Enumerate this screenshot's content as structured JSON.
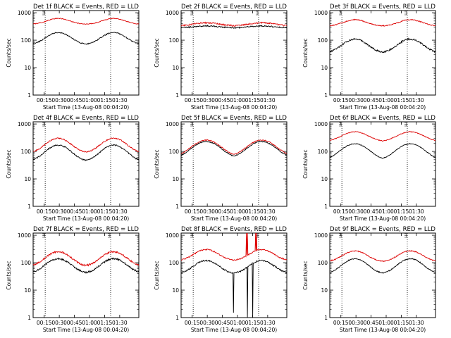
{
  "figure": {
    "background": "#ffffff",
    "colors": {
      "events": "#000000",
      "lld": "#dd0000",
      "axes": "#000000"
    }
  },
  "chart_data": [
    {
      "type": "line",
      "title": "Det 1f BLACK = Events, RED = LLD",
      "xlabel": "Start Time (13-Aug-08 00:04:20)",
      "ylabel": "Counts/sec",
      "yscale": "log",
      "ylim": [
        1,
        1200
      ],
      "xlim": [
        0,
        105
      ],
      "x_ticks": [
        11,
        26,
        41,
        56,
        71,
        86
      ],
      "x_tick_labels": [
        "00:15",
        "00:30",
        "00:45",
        "01:00",
        "01:15",
        "01:30"
      ],
      "y_ticks": [
        1,
        10,
        100,
        1000
      ],
      "y_tick_labels": [
        "1",
        "10",
        "100",
        "1000"
      ],
      "marker_lines": [
        12,
        77
      ],
      "series": [
        {
          "name": "Events",
          "color": "#000000",
          "shape": {
            "base": 70,
            "peak": 190,
            "peaks": [
              25,
              80
            ],
            "width": 10,
            "noise": 0.04
          }
        },
        {
          "name": "LLD",
          "color": "#dd0000",
          "shape": {
            "base": 380,
            "peak": 620,
            "peaks": [
              25,
              80
            ],
            "width": 10,
            "noise": 0.03
          }
        }
      ]
    },
    {
      "type": "line",
      "title": "Det 2f BLACK = Events, RED = LLD",
      "xlabel": "Start Time (13-Aug-08 00:04:20)",
      "ylabel": "Counts/sec",
      "yscale": "log",
      "ylim": [
        1,
        1200
      ],
      "xlim": [
        0,
        105
      ],
      "x_ticks": [
        11,
        26,
        41,
        56,
        71,
        86
      ],
      "x_tick_labels": [
        "00:15",
        "00:30",
        "00:45",
        "01:00",
        "01:15",
        "01:30"
      ],
      "y_ticks": [
        1,
        10,
        100,
        1000
      ],
      "y_tick_labels": [
        "1",
        "10",
        "100",
        "1000"
      ],
      "marker_lines": [
        12,
        77
      ],
      "series": [
        {
          "name": "Events",
          "color": "#000000",
          "shape": {
            "base": 280,
            "peak": 330,
            "peaks": [
              25,
              80
            ],
            "width": 12,
            "noise": 0.05
          }
        },
        {
          "name": "LLD",
          "color": "#dd0000",
          "shape": {
            "base": 330,
            "peak": 430,
            "peaks": [
              25,
              80
            ],
            "width": 12,
            "noise": 0.06
          }
        }
      ]
    },
    {
      "type": "line",
      "title": "Det 3f BLACK = Events, RED = LLD",
      "xlabel": "Start Time (13-Aug-08 00:04:20)",
      "ylabel": "Counts/sec",
      "yscale": "log",
      "ylim": [
        1,
        1200
      ],
      "xlim": [
        0,
        105
      ],
      "x_ticks": [
        11,
        26,
        41,
        56,
        71,
        86
      ],
      "x_tick_labels": [
        "00:15",
        "00:30",
        "00:45",
        "01:00",
        "01:15",
        "01:30"
      ],
      "y_ticks": [
        1,
        10,
        100,
        1000
      ],
      "y_tick_labels": [
        "1",
        "10",
        "100",
        "1000"
      ],
      "marker_lines": [
        12,
        77
      ],
      "series": [
        {
          "name": "Events",
          "color": "#000000",
          "shape": {
            "base": 35,
            "peak": 110,
            "peaks": [
              25,
              80
            ],
            "width": 10,
            "noise": 0.07
          }
        },
        {
          "name": "LLD",
          "color": "#dd0000",
          "shape": {
            "base": 330,
            "peak": 560,
            "peaks": [
              25,
              80
            ],
            "width": 10,
            "noise": 0.04
          }
        }
      ]
    },
    {
      "type": "line",
      "title": "Det 4f BLACK = Events, RED = LLD",
      "xlabel": "Start Time (13-Aug-08 00:04:20)",
      "ylabel": "Counts/sec",
      "yscale": "log",
      "ylim": [
        1,
        1200
      ],
      "xlim": [
        0,
        105
      ],
      "x_ticks": [
        11,
        26,
        41,
        56,
        71,
        86
      ],
      "x_tick_labels": [
        "00:15",
        "00:30",
        "00:45",
        "01:00",
        "01:15",
        "01:30"
      ],
      "y_ticks": [
        1,
        10,
        100,
        1000
      ],
      "y_tick_labels": [
        "1",
        "10",
        "100",
        "1000"
      ],
      "marker_lines": [
        12,
        77
      ],
      "series": [
        {
          "name": "Events",
          "color": "#000000",
          "shape": {
            "base": 45,
            "peak": 170,
            "peaks": [
              25,
              80
            ],
            "width": 10,
            "noise": 0.05
          }
        },
        {
          "name": "LLD",
          "color": "#dd0000",
          "shape": {
            "base": 90,
            "peak": 300,
            "peaks": [
              25,
              80
            ],
            "width": 10,
            "noise": 0.05
          }
        }
      ]
    },
    {
      "type": "line",
      "title": "Det 5f BLACK = Events, RED = LLD",
      "xlabel": "Start Time (13-Aug-08 00:04:20)",
      "ylabel": "Counts/sec",
      "yscale": "log",
      "ylim": [
        1,
        1200
      ],
      "xlim": [
        0,
        105
      ],
      "x_ticks": [
        11,
        26,
        41,
        56,
        71,
        86
      ],
      "x_tick_labels": [
        "00:15",
        "00:30",
        "00:45",
        "01:00",
        "01:15",
        "01:30"
      ],
      "y_ticks": [
        1,
        10,
        100,
        1000
      ],
      "y_tick_labels": [
        "1",
        "10",
        "100",
        "1000"
      ],
      "marker_lines": [
        12,
        77
      ],
      "series": [
        {
          "name": "Events",
          "color": "#000000",
          "shape": {
            "base": 60,
            "peak": 230,
            "peaks": [
              25,
              80
            ],
            "width": 11,
            "noise": 0.04
          }
        },
        {
          "name": "LLD",
          "color": "#dd0000",
          "shape": {
            "base": 70,
            "peak": 260,
            "peaks": [
              25,
              80
            ],
            "width": 11,
            "noise": 0.04
          }
        }
      ]
    },
    {
      "type": "line",
      "title": "Det 6f BLACK = Events, RED = LLD",
      "xlabel": "Start Time (13-Aug-08 00:04:20)",
      "ylabel": "Counts/sec",
      "yscale": "log",
      "ylim": [
        1,
        1200
      ],
      "xlim": [
        0,
        105
      ],
      "x_ticks": [
        11,
        26,
        41,
        56,
        71,
        86
      ],
      "x_tick_labels": [
        "00:15",
        "00:30",
        "00:45",
        "01:00",
        "01:15",
        "01:30"
      ],
      "y_ticks": [
        1,
        10,
        100,
        1000
      ],
      "y_tick_labels": [
        "1",
        "10",
        "100",
        "1000"
      ],
      "marker_lines": [
        12,
        77
      ],
      "series": [
        {
          "name": "Events",
          "color": "#000000",
          "shape": {
            "base": 50,
            "peak": 190,
            "peaks": [
              25,
              80
            ],
            "width": 11,
            "noise": 0.03
          }
        },
        {
          "name": "LLD",
          "color": "#dd0000",
          "shape": {
            "base": 230,
            "peak": 520,
            "peaks": [
              25,
              80
            ],
            "width": 11,
            "noise": 0.03
          }
        }
      ]
    },
    {
      "type": "line",
      "title": "Det 7f BLACK = Events, RED = LLD",
      "xlabel": "Start Time (13-Aug-08 00:04:20)",
      "ylabel": "Counts/sec",
      "yscale": "log",
      "ylim": [
        1,
        1200
      ],
      "xlim": [
        0,
        105
      ],
      "x_ticks": [
        11,
        26,
        41,
        56,
        71,
        86
      ],
      "x_tick_labels": [
        "00:15",
        "00:30",
        "00:45",
        "01:00",
        "01:15",
        "01:30"
      ],
      "y_ticks": [
        1,
        10,
        100,
        1000
      ],
      "y_tick_labels": [
        "1",
        "10",
        "100",
        "1000"
      ],
      "marker_lines": [
        12,
        77
      ],
      "series": [
        {
          "name": "Events",
          "color": "#000000",
          "shape": {
            "base": 42,
            "peak": 140,
            "peaks": [
              25,
              80
            ],
            "width": 10,
            "noise": 0.07
          }
        },
        {
          "name": "LLD",
          "color": "#dd0000",
          "shape": {
            "base": 75,
            "peak": 250,
            "peaks": [
              25,
              80
            ],
            "width": 10,
            "noise": 0.07
          }
        }
      ]
    },
    {
      "type": "line",
      "title": "Det 8f BLACK = Events, RED = LLD",
      "xlabel": "Start Time (13-Aug-08 00:04:20)",
      "ylabel": "Counts/sec",
      "yscale": "log",
      "ylim": [
        1,
        1200
      ],
      "xlim": [
        0,
        105
      ],
      "x_ticks": [
        11,
        26,
        41,
        56,
        71,
        86
      ],
      "x_tick_labels": [
        "00:15",
        "00:30",
        "00:45",
        "01:00",
        "01:15",
        "01:30"
      ],
      "y_ticks": [
        1,
        10,
        100,
        1000
      ],
      "y_tick_labels": [
        "1",
        "10",
        "100",
        "1000"
      ],
      "marker_lines": [
        12,
        77
      ],
      "series": [
        {
          "name": "Events",
          "color": "#000000",
          "shape": {
            "base": 40,
            "peak": 120,
            "peaks": [
              25,
              80
            ],
            "width": 10,
            "noise": 0.06,
            "spikes": [
              [
                52,
                1.5
              ],
              [
                66,
                1
              ],
              [
                71,
                0.5
              ]
            ]
          }
        },
        {
          "name": "LLD",
          "color": "#dd0000",
          "shape": {
            "base": 120,
            "peak": 300,
            "peaks": [
              25,
              80
            ],
            "width": 10,
            "noise": 0.05,
            "spikes": [
              [
                65,
                1200
              ],
              [
                66,
                1200
              ],
              [
                74,
                1200
              ],
              [
                75,
                1200
              ]
            ]
          }
        }
      ]
    },
    {
      "type": "line",
      "title": "Det 9f BLACK = Events, RED = LLD",
      "xlabel": "Start Time (13-Aug-08 00:04:20)",
      "ylabel": "Counts/sec",
      "yscale": "log",
      "ylim": [
        1,
        1200
      ],
      "xlim": [
        0,
        105
      ],
      "x_ticks": [
        11,
        26,
        41,
        56,
        71,
        86
      ],
      "x_tick_labels": [
        "00:15",
        "00:30",
        "00:45",
        "01:00",
        "01:15",
        "01:30"
      ],
      "y_ticks": [
        1,
        10,
        100,
        1000
      ],
      "y_tick_labels": [
        "1",
        "10",
        "100",
        "1000"
      ],
      "marker_lines": [
        12,
        77
      ],
      "series": [
        {
          "name": "Events",
          "color": "#000000",
          "shape": {
            "base": 40,
            "peak": 140,
            "peaks": [
              25,
              80
            ],
            "width": 10,
            "noise": 0.04
          }
        },
        {
          "name": "LLD",
          "color": "#dd0000",
          "shape": {
            "base": 110,
            "peak": 270,
            "peaks": [
              25,
              80
            ],
            "width": 10,
            "noise": 0.04
          }
        }
      ]
    }
  ]
}
